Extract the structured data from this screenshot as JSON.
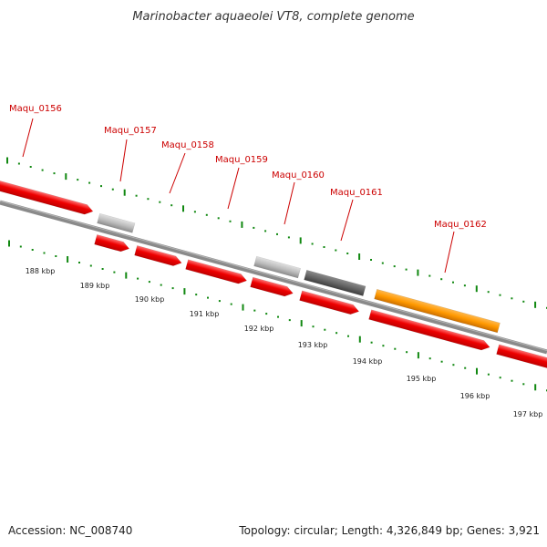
{
  "title": "Marinobacter aquaeolei VT8, complete genome",
  "footer": {
    "accession": "Accession: NC_008740",
    "topology": "Topology: circular; Length: 4,326,849 bp; Genes: 3,921"
  },
  "colors": {
    "gene_red": "#ee0000",
    "gene_red_light": "#ff6a6a",
    "gene_orange": "#ff9900",
    "gene_gray": "#bbbbbb",
    "gene_dark": "#666666",
    "backbone": "#808080",
    "tick_green": "#118811",
    "label_red": "#cc0000"
  },
  "gene_labels": [
    "Maqu_0156",
    "Maqu_0157",
    "Maqu_0158",
    "Maqu_0159",
    "Maqu_0160",
    "Maqu_0161",
    "Maqu_0162"
  ],
  "kbp_labels": [
    "188 kbp",
    "189 kbp",
    "190 kbp",
    "191 kbp",
    "192 kbp",
    "193 kbp",
    "194 kbp",
    "195 kbp",
    "196 kbp",
    "197 kbp"
  ]
}
